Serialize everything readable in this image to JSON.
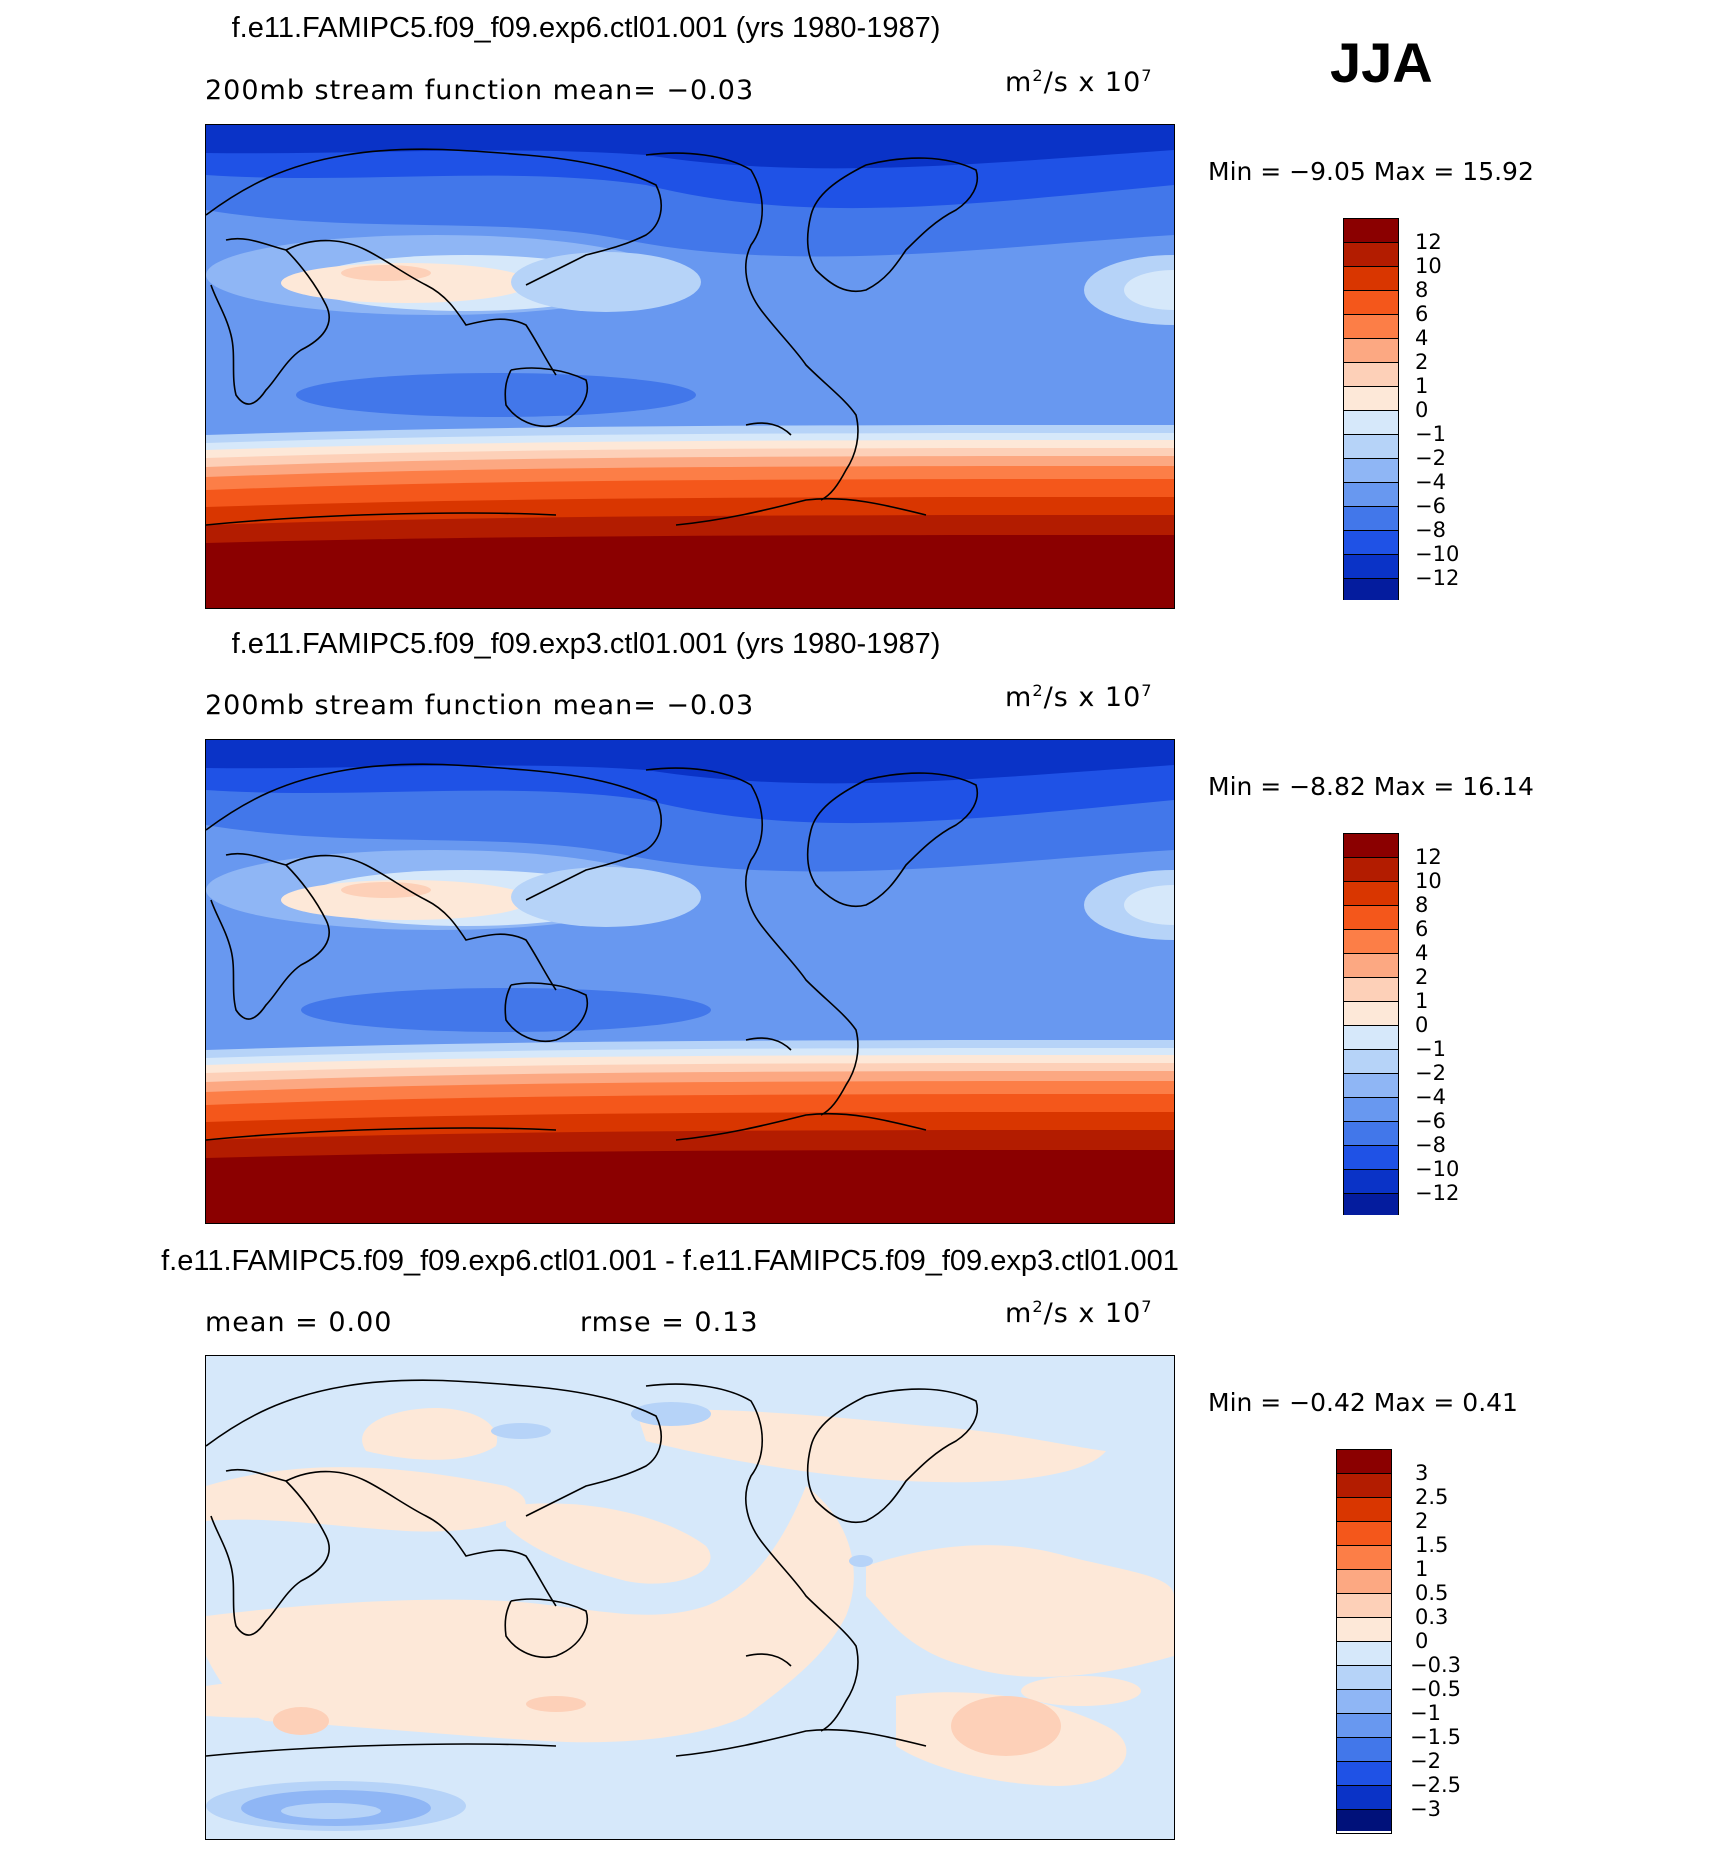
{
  "season": "JJA",
  "colors": {
    "p12": "#8b0000",
    "p10": "#b31c00",
    "p8": "#d93600",
    "p6": "#f4571b",
    "p4": "#fc7e47",
    "p2": "#fca882",
    "p1": "#fdd0b8",
    "p0": "#fde8d8",
    "n0": "#d6e8fa",
    "n1": "#b6d3f8",
    "n2": "#8fb6f5",
    "n4": "#6898f0",
    "n6": "#4277ea",
    "n8": "#1f52e6",
    "n10": "#0a33c7",
    "n12": "#041c9e",
    "n14": "#00117a"
  },
  "panels": [
    {
      "title": "f.e11.FAMIPC5.f09_f09.exp6.ctl01.001 (yrs 1980-1987)",
      "left_text": "200mb stream function   mean=   −0.03",
      "units": "m",
      "units_sup": "2",
      "units_rest": "/s  x  10",
      "units_exp": "7",
      "minmax": "Min =   −9.05  Max =    15.92",
      "cbar_labels": [
        "12",
        "10",
        "8",
        "6",
        "4",
        "2",
        "1",
        "0",
        "−1",
        "−2",
        "−4",
        "−6",
        "−8",
        "−10",
        "−12"
      ]
    },
    {
      "title": "f.e11.FAMIPC5.f09_f09.exp3.ctl01.001 (yrs 1980-1987)",
      "left_text": "200mb stream function   mean=   −0.03",
      "units": "m",
      "units_sup": "2",
      "units_rest": "/s  x  10",
      "units_exp": "7",
      "minmax": "Min =   −8.82  Max =    16.14",
      "cbar_labels": [
        "12",
        "10",
        "8",
        "6",
        "4",
        "2",
        "1",
        "0",
        "−1",
        "−2",
        "−4",
        "−6",
        "−8",
        "−10",
        "−12"
      ]
    },
    {
      "title": "f.e11.FAMIPC5.f09_f09.exp6.ctl01.001 - f.e11.FAMIPC5.f09_f09.exp3.ctl01.001",
      "left_text": "mean =     0.00",
      "mid_text": "rmse =     0.13",
      "units": "m",
      "units_sup": "2",
      "units_rest": "/s  x  10",
      "units_exp": "7",
      "minmax": "Min =   −0.42  Max =     0.41",
      "cbar_labels": [
        "3",
        "2.5",
        "2",
        "1.5",
        "1",
        "0.5",
        "0.3",
        "0",
        "−0.3",
        "−0.5",
        "−1",
        "−1.5",
        "−2",
        "−2.5",
        "−3"
      ]
    }
  ]
}
